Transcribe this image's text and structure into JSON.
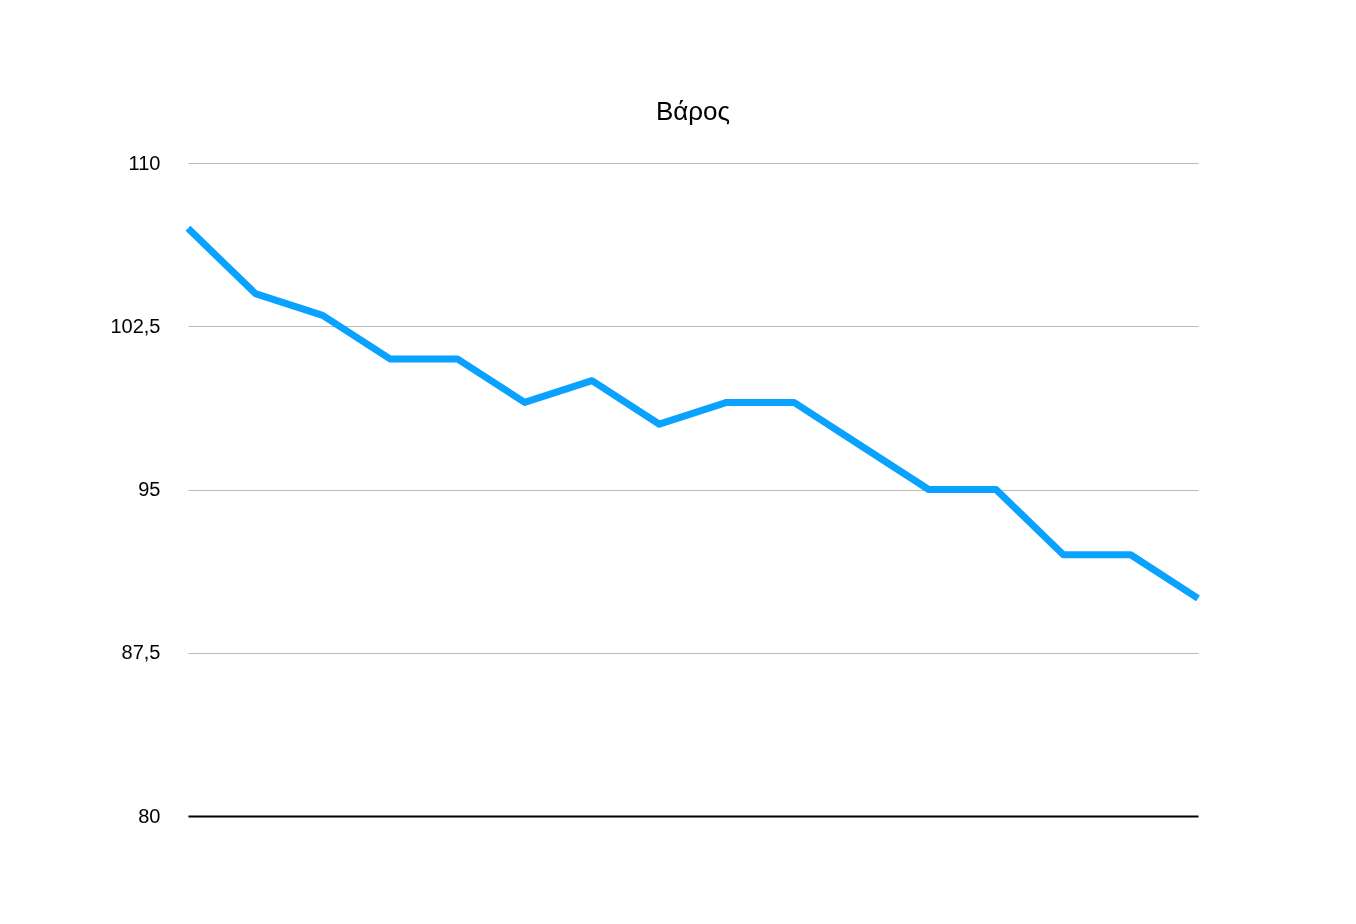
{
  "chart_data": {
    "type": "line",
    "title": "Βάρος",
    "categories": [
      null,
      null,
      null,
      null,
      null,
      null,
      null,
      null,
      null,
      null,
      null,
      null,
      null,
      null,
      null,
      null
    ],
    "series": [
      {
        "color": "#0aa2ff",
        "values": [
          107,
          104,
          103,
          101,
          101,
          99,
          100,
          98,
          99,
          99,
          97,
          95,
          95,
          92,
          92,
          90
        ]
      }
    ],
    "ylim": [
      80,
      110
    ],
    "yticks": [
      80,
      {
        "value": 87.5,
        "label": "87,5"
      },
      95,
      {
        "value": 102.5,
        "label": "102,5"
      },
      110
    ],
    "grid": "y",
    "marker": "none",
    "line_style": "solid"
  }
}
